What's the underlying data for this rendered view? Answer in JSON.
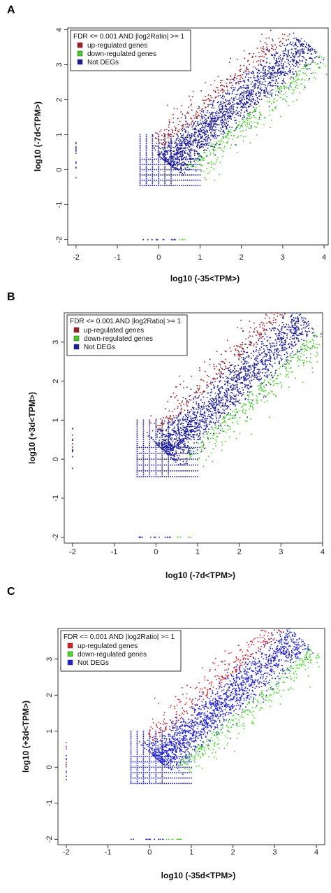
{
  "chart_data": [
    {
      "panel": "A",
      "type": "scatter",
      "xlabel": "log10 (-35<TPM>)",
      "ylabel": "log10 (-7d<TPM>)",
      "xlim": [
        -2.2,
        4.1
      ],
      "ylim": [
        -2.15,
        4.05
      ],
      "x_ticks": [
        "-2",
        "-1",
        "0",
        "1",
        "2",
        "3",
        "4"
      ],
      "y_ticks": [
        "-2",
        "-1",
        "0",
        "1",
        "2",
        "3",
        "4"
      ],
      "legend_placement": "top-left",
      "legend_title": "FDR <=  0.001  AND |log2Ratio| >=  1",
      "series": [
        {
          "name": "up-regulated genes",
          "color": "#a51c1c",
          "marker": "dot",
          "trend_points": [
            [
              0.6,
              1.0
            ],
            [
              1.3,
              1.9
            ],
            [
              2.0,
              2.6
            ],
            [
              2.6,
              3.2
            ]
          ]
        },
        {
          "name": "down-regulated genes",
          "color": "#3fd21f",
          "marker": "dot",
          "trend_points": [
            [
              1.0,
              0.2
            ],
            [
              1.7,
              0.8
            ],
            [
              2.4,
              1.4
            ],
            [
              3.0,
              2.2
            ]
          ]
        },
        {
          "name": "Not DEGs",
          "color": "#1a1aa0",
          "marker": "dot",
          "trend_points": [
            [
              -0.5,
              -0.5
            ],
            [
              0.5,
              0.5
            ],
            [
              1.5,
              1.4
            ],
            [
              2.5,
              2.3
            ],
            [
              3.5,
              3.4
            ]
          ]
        }
      ]
    },
    {
      "panel": "B",
      "type": "scatter",
      "xlabel": "log10 (-7d<TPM>)",
      "ylabel": "log10 (+3d<TPM>)",
      "xlim": [
        -2.2,
        4.0
      ],
      "ylim": [
        -2.15,
        3.75
      ],
      "x_ticks": [
        "-2",
        "-1",
        "0",
        "1",
        "2",
        "3",
        "4"
      ],
      "y_ticks": [
        "-2",
        "-1",
        "0",
        "1",
        "2",
        "3"
      ],
      "legend_placement": "top-left",
      "legend_title": "FDR <=  0.001  AND |log2Ratio| >=  1",
      "series": [
        {
          "name": "up-regulated genes",
          "color": "#a51c1c",
          "marker": "dot",
          "trend_points": [
            [
              0.6,
              1.2
            ],
            [
              1.3,
              1.9
            ],
            [
              2.0,
              2.6
            ],
            [
              2.6,
              3.1
            ]
          ]
        },
        {
          "name": "down-regulated genes",
          "color": "#3fd21f",
          "marker": "dot",
          "trend_points": [
            [
              1.0,
              0.1
            ],
            [
              1.7,
              0.7
            ],
            [
              2.4,
              1.4
            ],
            [
              3.0,
              2.2
            ]
          ]
        },
        {
          "name": "Not DEGs",
          "color": "#1a1aa0",
          "marker": "dot",
          "trend_points": [
            [
              -0.5,
              -0.5
            ],
            [
              0.5,
              0.6
            ],
            [
              1.5,
              1.5
            ],
            [
              2.5,
              2.4
            ],
            [
              3.5,
              3.4
            ]
          ]
        }
      ]
    },
    {
      "panel": "C",
      "type": "scatter",
      "xlabel": "log10 (-35d<TPM>)",
      "ylabel": "log10 (+3d<TPM>)",
      "xlim": [
        -2.2,
        4.2
      ],
      "ylim": [
        -2.15,
        3.85
      ],
      "x_ticks": [
        "-2",
        "-1",
        "0",
        "1",
        "2",
        "3",
        "4"
      ],
      "y_ticks": [
        "-2",
        "-1",
        "0",
        "1",
        "2",
        "3"
      ],
      "legend_placement": "top-left",
      "legend_title": "FDR <=  0.001  AND |log2Ratio| >=  1",
      "series": [
        {
          "name": "up-regulated genes",
          "color": "#e02020",
          "marker": "dot",
          "trend_points": [
            [
              0.6,
              1.2
            ],
            [
              1.3,
              1.8
            ],
            [
              2.0,
              2.5
            ],
            [
              2.6,
              3.1
            ]
          ]
        },
        {
          "name": "down-regulated genes",
          "color": "#40e020",
          "marker": "dot",
          "trend_points": [
            [
              1.0,
              0.0
            ],
            [
              1.7,
              0.7
            ],
            [
              2.4,
              1.4
            ],
            [
              3.0,
              2.1
            ]
          ]
        },
        {
          "name": "Not DEGs",
          "color": "#2020e0",
          "marker": "dot",
          "trend_points": [
            [
              -0.5,
              -0.5
            ],
            [
              0.5,
              0.5
            ],
            [
              1.5,
              1.4
            ],
            [
              2.5,
              2.3
            ],
            [
              3.5,
              3.4
            ]
          ]
        }
      ]
    }
  ]
}
